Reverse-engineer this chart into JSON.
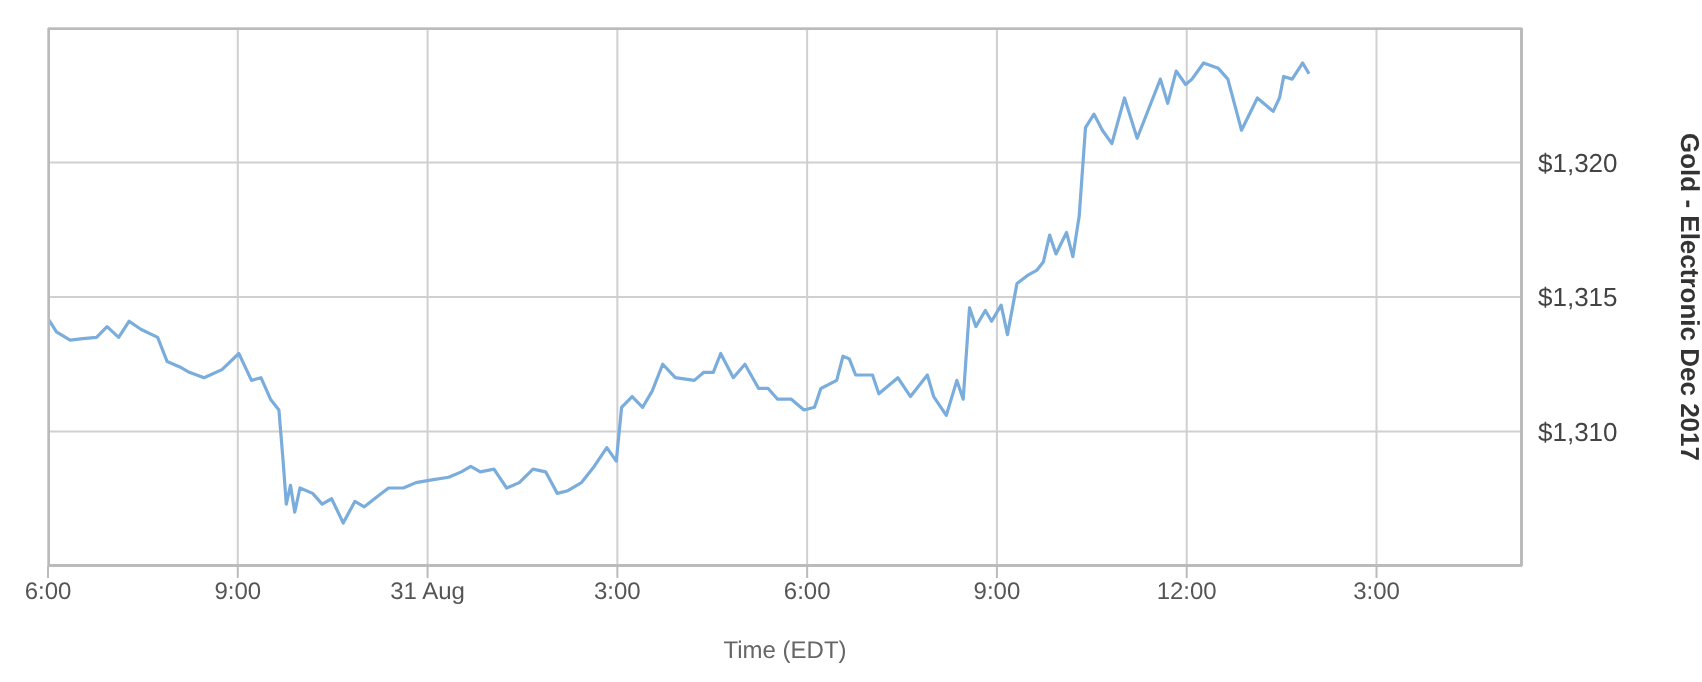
{
  "chart_data": {
    "type": "line",
    "xlabel": "Time (EDT)",
    "ylabel": "Gold - Electronic Dec 2017",
    "x": [
      "--08-30T18:00",
      "--08-30T18:08",
      "--08-30T18:21",
      "--08-30T18:33",
      "--08-30T18:46",
      "--08-30T18:56",
      "--08-30T19:07",
      "--08-30T19:17",
      "--08-30T19:28",
      "--08-30T19:44",
      "--08-30T19:53",
      "--08-30T20:05",
      "--08-30T20:14",
      "--08-30T20:28",
      "--08-30T20:45",
      "--08-30T21:01",
      "--08-30T21:13",
      "--08-30T21:22",
      "--08-30T21:31",
      "--08-30T21:39",
      "--08-30T21:43",
      "--08-30T21:46",
      "--08-30T21:50",
      "--08-30T21:54",
      "--08-30T21:59",
      "--08-30T22:11",
      "--08-30T22:20",
      "--08-30T22:29",
      "--08-30T22:40",
      "--08-30T22:51",
      "--08-30T23:00",
      "--08-30T23:13",
      "--08-30T23:23",
      "--08-30T23:37",
      "--08-30T23:49",
      "--08-31T00:04",
      "--08-31T00:20",
      "--08-31T00:32",
      "--08-31T00:41",
      "--08-31T00:50",
      "--08-31T01:03",
      "--08-31T01:15",
      "--08-31T01:27",
      "--08-31T01:40",
      "--08-31T01:52",
      "--08-31T02:03",
      "--08-31T02:13",
      "--08-31T02:26",
      "--08-31T02:38",
      "--08-31T02:50",
      "--08-31T02:59",
      "--08-31T03:04",
      "--08-31T03:14",
      "--08-31T03:24",
      "--08-31T03:33",
      "--08-31T03:43",
      "--08-31T03:55",
      "--08-31T04:13",
      "--08-31T04:22",
      "--08-31T04:31",
      "--08-31T04:38",
      "--08-31T04:50",
      "--08-31T05:01",
      "--08-31T05:14",
      "--08-31T05:23",
      "--08-31T05:32",
      "--08-31T05:45",
      "--08-31T05:57",
      "--08-31T06:07",
      "--08-31T06:13",
      "--08-31T06:28",
      "--08-31T06:34",
      "--08-31T06:40",
      "--08-31T06:46",
      "--08-31T07:02",
      "--08-31T07:08",
      "--08-31T07:26",
      "--08-31T07:38",
      "--08-31T07:54",
      "--08-31T08:00",
      "--08-31T08:12",
      "--08-31T08:22",
      "--08-31T08:28",
      "--08-31T08:34",
      "--08-31T08:40",
      "--08-31T08:49",
      "--08-31T08:55",
      "--08-31T09:04",
      "--08-31T09:10",
      "--08-31T09:19",
      "--08-31T09:29",
      "--08-31T09:38",
      "--08-31T09:44",
      "--08-31T09:50",
      "--08-31T09:56",
      "--08-31T10:06",
      "--08-31T10:12",
      "--08-31T10:18",
      "--08-31T10:24",
      "--08-31T10:32",
      "--08-31T10:40",
      "--08-31T10:49",
      "--08-31T11:01",
      "--08-31T11:13",
      "--08-31T11:25",
      "--08-31T11:35",
      "--08-31T11:42",
      "--08-31T11:50",
      "--08-31T11:59",
      "--08-31T12:05",
      "--08-31T12:16",
      "--08-31T12:30",
      "--08-31T12:39",
      "--08-31T12:52",
      "--08-31T13:07",
      "--08-31T13:22",
      "--08-31T13:28",
      "--08-31T13:32",
      "--08-31T13:40",
      "--08-31T13:50",
      "--08-31T13:56"
    ],
    "series": [
      {
        "color": "#7aaddc",
        "values": [
          1314.2,
          1313.7,
          1313.4,
          1313.45,
          1313.5,
          1313.9,
          1313.5,
          1314.1,
          1313.8,
          1313.5,
          1312.6,
          1312.4,
          1312.2,
          1312.0,
          1312.3,
          1312.9,
          1311.9,
          1312.0,
          1311.2,
          1310.8,
          1308.9,
          1307.3,
          1308.0,
          1307.0,
          1307.9,
          1307.7,
          1307.3,
          1307.5,
          1306.6,
          1307.4,
          1307.2,
          1307.6,
          1307.9,
          1307.9,
          1308.1,
          1308.2,
          1308.3,
          1308.5,
          1308.7,
          1308.5,
          1308.6,
          1307.9,
          1308.1,
          1308.6,
          1308.5,
          1307.7,
          1307.8,
          1308.1,
          1308.7,
          1309.4,
          1308.9,
          1310.9,
          1311.3,
          1310.9,
          1311.5,
          1312.5,
          1312.0,
          1311.9,
          1312.2,
          1312.2,
          1312.9,
          1312.0,
          1312.5,
          1311.6,
          1311.6,
          1311.2,
          1311.2,
          1310.8,
          1310.9,
          1311.6,
          1311.9,
          1312.8,
          1312.7,
          1312.1,
          1312.1,
          1311.4,
          1312.0,
          1311.3,
          1312.1,
          1311.3,
          1310.6,
          1311.9,
          1311.2,
          1314.6,
          1313.9,
          1314.5,
          1314.1,
          1314.7,
          1313.6,
          1315.5,
          1315.8,
          1316.0,
          1316.3,
          1317.3,
          1316.6,
          1317.4,
          1316.5,
          1318.0,
          1321.3,
          1321.8,
          1321.2,
          1320.7,
          1322.4,
          1320.9,
          1322.1,
          1323.1,
          1322.2,
          1323.4,
          1322.9,
          1323.1,
          1323.7,
          1323.5,
          1323.1,
          1321.2,
          1322.4,
          1321.9,
          1322.4,
          1323.2,
          1323.1,
          1323.7,
          1323.3
        ]
      }
    ],
    "xlim": [
      "--08-30T18:00",
      "--08-31T17:18"
    ],
    "xticks": [
      {
        "value": "--08-30T18:00",
        "label": "6:00"
      },
      {
        "value": "--08-30T21:00",
        "label": "9:00"
      },
      {
        "value": "--08-31T00:00",
        "label": "31 Aug"
      },
      {
        "value": "--08-31T03:00",
        "label": "3:00"
      },
      {
        "value": "--08-31T06:00",
        "label": "6:00"
      },
      {
        "value": "--08-31T09:00",
        "label": "9:00"
      },
      {
        "value": "--08-31T12:00",
        "label": "12:00"
      },
      {
        "value": "--08-31T15:00",
        "label": "3:00"
      }
    ],
    "ylim": [
      1305,
      1325
    ],
    "yticks": [
      {
        "value": 1310,
        "label": "$1,310"
      },
      {
        "value": 1315,
        "label": "$1,315"
      },
      {
        "value": 1320,
        "label": "$1,320"
      }
    ],
    "grid": true,
    "marker": "none",
    "line_style": "solid"
  }
}
